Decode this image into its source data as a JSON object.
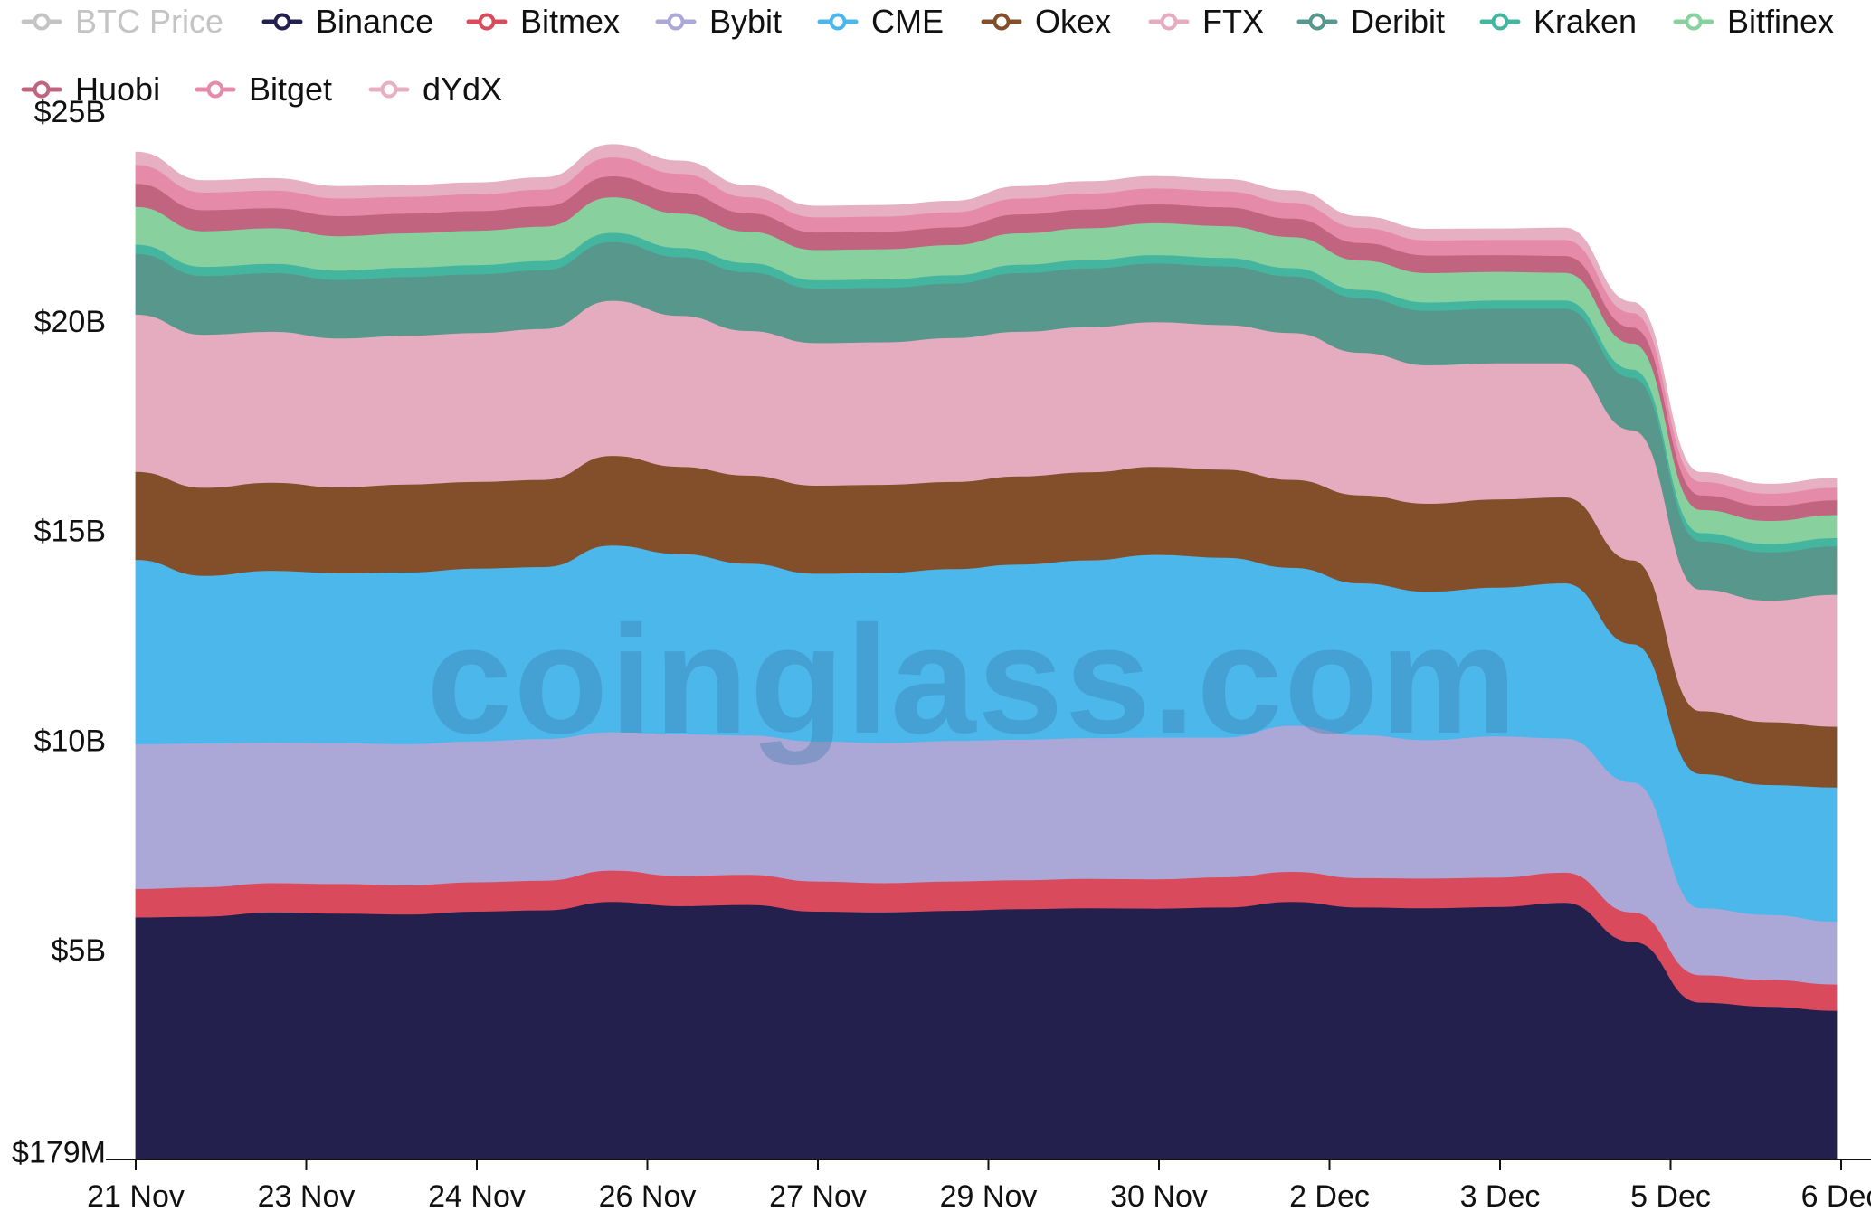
{
  "watermark": "coinglass.com",
  "chart_data": {
    "type": "area",
    "stacked": true,
    "yaxis": {
      "ticks": [
        {
          "value": 0.179,
          "label": "$179M"
        },
        {
          "value": 5,
          "label": "$5B"
        },
        {
          "value": 10,
          "label": "$10B"
        },
        {
          "value": 15,
          "label": "$15B"
        },
        {
          "value": 20,
          "label": "$20B"
        },
        {
          "value": 25,
          "label": "$25B"
        }
      ],
      "unit": "B",
      "ylim": [
        0,
        25.5
      ]
    },
    "xaxis": {
      "tick_labels": [
        "21 Nov",
        "23 Nov",
        "24 Nov",
        "26 Nov",
        "27 Nov",
        "29 Nov",
        "30 Nov",
        "2 Dec",
        "3 Dec",
        "5 Dec",
        "6 Dec"
      ]
    },
    "x": [
      "21 Nov",
      "21 Nov",
      "22 Nov",
      "23 Nov",
      "23 Nov",
      "24 Nov",
      "24 Nov",
      "25 Nov",
      "26 Nov",
      "26 Nov",
      "27 Nov",
      "27 Nov",
      "28 Nov",
      "29 Nov",
      "29 Nov",
      "30 Nov",
      "30 Nov",
      "1 Dec",
      "2 Dec",
      "2 Dec",
      "3 Dec",
      "3 Dec",
      "4 Dec",
      "5 Dec",
      "5 Dec",
      "6 Dec"
    ],
    "legend": [
      {
        "name": "BTC Price",
        "color": "#c4c4c4",
        "active": false
      },
      {
        "name": "Binance",
        "color": "#23204e",
        "active": true
      },
      {
        "name": "Bitmex",
        "color": "#d94a5d",
        "active": true
      },
      {
        "name": "Bybit",
        "color": "#aba8d8",
        "active": true
      },
      {
        "name": "CME",
        "color": "#4cb7ea",
        "active": true
      },
      {
        "name": "Okex",
        "color": "#824f2a",
        "active": true
      },
      {
        "name": "FTX",
        "color": "#e5abbf",
        "active": true
      },
      {
        "name": "Deribit",
        "color": "#58978b",
        "active": true
      },
      {
        "name": "Kraken",
        "color": "#44b6a0",
        "active": true
      },
      {
        "name": "Bitfinex",
        "color": "#88d09e",
        "active": true
      },
      {
        "name": "Huobi",
        "color": "#c0647f",
        "active": true
      },
      {
        "name": "Bitget",
        "color": "#e58aa8",
        "active": true
      },
      {
        "name": "dYdX",
        "color": "#e7afc2",
        "active": true
      }
    ],
    "series": [
      {
        "name": "Binance",
        "color": "#23204e",
        "values": [
          5.78,
          5.8,
          5.9,
          5.87,
          5.85,
          5.92,
          5.95,
          6.15,
          6.05,
          6.08,
          5.92,
          5.9,
          5.94,
          5.98,
          6.0,
          5.99,
          6.02,
          6.15,
          6.02,
          6.0,
          6.03,
          6.13,
          5.2,
          3.75,
          3.65,
          3.55
        ]
      },
      {
        "name": "Bitmex",
        "color": "#d94a5d",
        "values": [
          0.68,
          0.7,
          0.7,
          0.71,
          0.7,
          0.7,
          0.71,
          0.75,
          0.72,
          0.72,
          0.72,
          0.7,
          0.7,
          0.69,
          0.7,
          0.7,
          0.72,
          0.72,
          0.7,
          0.71,
          0.7,
          0.72,
          0.7,
          0.65,
          0.64,
          0.63
        ]
      },
      {
        "name": "Bybit",
        "color": "#aba8d8",
        "values": [
          3.45,
          3.43,
          3.35,
          3.36,
          3.36,
          3.36,
          3.38,
          3.3,
          3.38,
          3.32,
          3.34,
          3.34,
          3.35,
          3.35,
          3.36,
          3.38,
          3.33,
          3.48,
          3.41,
          3.3,
          3.37,
          3.2,
          3.1,
          1.6,
          1.55,
          1.5
        ]
      },
      {
        "name": "CME",
        "color": "#4cb7ea",
        "values": [
          4.4,
          4.0,
          4.1,
          4.05,
          4.1,
          4.12,
          4.1,
          4.45,
          4.3,
          4.1,
          4.0,
          4.06,
          4.1,
          4.18,
          4.24,
          4.36,
          4.29,
          3.77,
          3.62,
          3.54,
          3.55,
          3.7,
          3.3,
          3.2,
          3.1,
          3.2
        ]
      },
      {
        "name": "Okex",
        "color": "#824f2a",
        "values": [
          2.1,
          2.1,
          2.1,
          2.05,
          2.1,
          2.07,
          2.08,
          2.14,
          2.08,
          2.1,
          2.1,
          2.1,
          2.08,
          2.1,
          2.1,
          2.1,
          2.1,
          2.1,
          2.1,
          2.1,
          2.1,
          2.05,
          2.0,
          1.5,
          1.5,
          1.45
        ]
      },
      {
        "name": "FTX",
        "color": "#e5abbf",
        "values": [
          3.75,
          3.65,
          3.6,
          3.55,
          3.55,
          3.55,
          3.6,
          3.7,
          3.6,
          3.45,
          3.4,
          3.4,
          3.43,
          3.45,
          3.46,
          3.45,
          3.45,
          3.5,
          3.4,
          3.3,
          3.25,
          3.2,
          3.1,
          2.9,
          2.9,
          3.15
        ]
      },
      {
        "name": "Deribit",
        "color": "#58978b",
        "values": [
          1.45,
          1.4,
          1.4,
          1.4,
          1.4,
          1.4,
          1.4,
          1.4,
          1.4,
          1.4,
          1.3,
          1.3,
          1.3,
          1.4,
          1.4,
          1.4,
          1.4,
          1.35,
          1.3,
          1.3,
          1.3,
          1.3,
          1.25,
          1.15,
          1.15,
          1.15
        ]
      },
      {
        "name": "Kraken",
        "color": "#44b6a0",
        "values": [
          0.22,
          0.22,
          0.22,
          0.22,
          0.22,
          0.22,
          0.22,
          0.22,
          0.22,
          0.22,
          0.2,
          0.2,
          0.2,
          0.2,
          0.2,
          0.2,
          0.2,
          0.2,
          0.2,
          0.2,
          0.2,
          0.2,
          0.2,
          0.2,
          0.2,
          0.2
        ]
      },
      {
        "name": "Bitfinex",
        "color": "#88d09e",
        "values": [
          0.9,
          0.85,
          0.85,
          0.82,
          0.82,
          0.82,
          0.82,
          0.85,
          0.82,
          0.75,
          0.72,
          0.72,
          0.72,
          0.75,
          0.76,
          0.76,
          0.76,
          0.74,
          0.7,
          0.7,
          0.68,
          0.66,
          0.62,
          0.55,
          0.55,
          0.55
        ]
      },
      {
        "name": "Huobi",
        "color": "#c0647f",
        "values": [
          0.55,
          0.5,
          0.48,
          0.48,
          0.47,
          0.47,
          0.48,
          0.5,
          0.5,
          0.44,
          0.42,
          0.42,
          0.42,
          0.45,
          0.45,
          0.45,
          0.45,
          0.44,
          0.42,
          0.42,
          0.4,
          0.4,
          0.38,
          0.35,
          0.35,
          0.35
        ]
      },
      {
        "name": "Bitget",
        "color": "#e58aa8",
        "values": [
          0.45,
          0.42,
          0.42,
          0.42,
          0.4,
          0.4,
          0.4,
          0.45,
          0.45,
          0.38,
          0.36,
          0.36,
          0.36,
          0.38,
          0.38,
          0.38,
          0.38,
          0.38,
          0.36,
          0.36,
          0.36,
          0.38,
          0.35,
          0.32,
          0.3,
          0.3
        ]
      },
      {
        "name": "dYdX",
        "color": "#e7afc2",
        "values": [
          0.3,
          0.28,
          0.28,
          0.28,
          0.27,
          0.27,
          0.28,
          0.3,
          0.3,
          0.27,
          0.26,
          0.26,
          0.26,
          0.28,
          0.28,
          0.28,
          0.28,
          0.28,
          0.26,
          0.26,
          0.26,
          0.28,
          0.25,
          0.22,
          0.22,
          0.22
        ]
      }
    ]
  }
}
